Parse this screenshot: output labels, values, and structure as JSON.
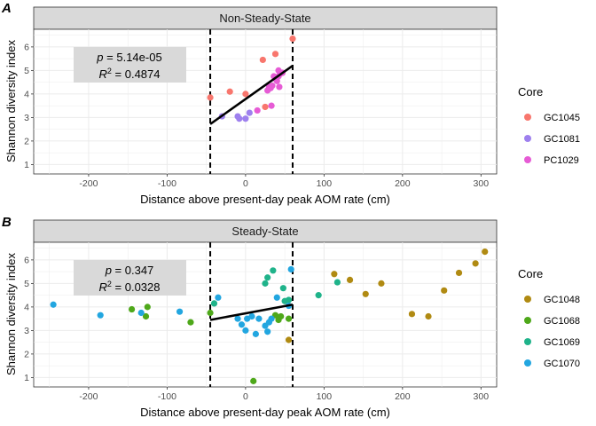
{
  "panels": [
    {
      "tag": "A",
      "strip_label": "Non-Steady-State",
      "stats": {
        "p_value": "5.14e-05",
        "r2_value": "0.4874"
      },
      "legend": {
        "title": "Core",
        "entries": [
          {
            "name": "GC1045",
            "color": "#F8766D"
          },
          {
            "name": "GC1081",
            "color": "#9E80EE"
          },
          {
            "name": "PC1029",
            "color": "#E65BD5"
          }
        ]
      }
    },
    {
      "tag": "B",
      "strip_label": "Steady-State",
      "stats": {
        "p_value": "0.347",
        "r2_value": "0.0328"
      },
      "legend": {
        "title": "Core",
        "entries": [
          {
            "name": "GC1048",
            "color": "#B08A12"
          },
          {
            "name": "GC1068",
            "color": "#4EA81A"
          },
          {
            "name": "GC1069",
            "color": "#1FB38A"
          },
          {
            "name": "GC1070",
            "color": "#22A6E0"
          }
        ]
      }
    }
  ],
  "chart_data": [
    {
      "type": "scatter",
      "title": "Non-Steady-State",
      "xlabel": "Distance above present-day peak AOM rate (cm)",
      "ylabel": "Shannon diversity index",
      "xlim": [
        -270,
        320
      ],
      "ylim": [
        0.6,
        6.75
      ],
      "x_ticks": [
        -200,
        -100,
        0,
        100,
        200,
        300
      ],
      "y_ticks": [
        1,
        2,
        3,
        4,
        5,
        6
      ],
      "grid": true,
      "legend_position": "right",
      "vlines": [
        -45,
        60
      ],
      "fit_line": {
        "x": [
          -45,
          60
        ],
        "y": [
          2.72,
          5.2
        ]
      },
      "annotation": {
        "p": "5.14e-05",
        "R2": "0.4874"
      },
      "series": [
        {
          "name": "GC1045",
          "color": "#F8766D",
          "points": [
            [
              -45,
              3.85
            ],
            [
              -20,
              4.1
            ],
            [
              0,
              4.0
            ],
            [
              22,
              5.45
            ],
            [
              38,
              5.7
            ],
            [
              60,
              6.35
            ],
            [
              25,
              3.45
            ]
          ]
        },
        {
          "name": "GC1081",
          "color": "#9E80EE",
          "points": [
            [
              -30,
              3.05
            ],
            [
              -10,
              3.05
            ],
            [
              -8,
              2.95
            ],
            [
              0,
              2.95
            ],
            [
              5,
              3.2
            ]
          ]
        },
        {
          "name": "PC1029",
          "color": "#E65BD5",
          "points": [
            [
              15,
              3.3
            ],
            [
              33,
              3.5
            ],
            [
              28,
              4.15
            ],
            [
              30,
              4.3
            ],
            [
              32,
              4.25
            ],
            [
              34,
              4.35
            ],
            [
              36,
              4.75
            ],
            [
              38,
              4.65
            ],
            [
              40,
              4.55
            ],
            [
              42,
              4.75
            ],
            [
              43,
              4.3
            ],
            [
              44,
              4.85
            ],
            [
              42,
              5.0
            ],
            [
              47,
              4.9
            ]
          ]
        }
      ]
    },
    {
      "type": "scatter",
      "title": "Steady-State",
      "xlabel": "Distance above present-day peak AOM rate (cm)",
      "ylabel": "Shannon diversity index",
      "xlim": [
        -270,
        320
      ],
      "ylim": [
        0.6,
        6.75
      ],
      "x_ticks": [
        -200,
        -100,
        0,
        100,
        200,
        300
      ],
      "y_ticks": [
        1,
        2,
        3,
        4,
        5,
        6
      ],
      "grid": true,
      "legend_position": "right",
      "vlines": [
        -45,
        60
      ],
      "fit_line": {
        "x": [
          -45,
          60
        ],
        "y": [
          3.45,
          4.1
        ]
      },
      "annotation": {
        "p": "0.347",
        "R2": "0.0328"
      },
      "series": [
        {
          "name": "GC1048",
          "color": "#B08A12",
          "points": [
            [
              113,
              5.4
            ],
            [
              133,
              5.15
            ],
            [
              173,
              5.0
            ],
            [
              153,
              4.55
            ],
            [
              212,
              3.7
            ],
            [
              233,
              3.6
            ],
            [
              253,
              4.7
            ],
            [
              272,
              5.45
            ],
            [
              293,
              5.85
            ],
            [
              305,
              6.35
            ],
            [
              55,
              2.6
            ]
          ]
        },
        {
          "name": "GC1068",
          "color": "#4EA81A",
          "points": [
            [
              -145,
              3.9
            ],
            [
              -127,
              3.6
            ],
            [
              -125,
              4.0
            ],
            [
              -70,
              3.35
            ],
            [
              -45,
              3.75
            ],
            [
              10,
              0.85
            ],
            [
              45,
              3.6
            ],
            [
              38,
              3.65
            ],
            [
              55,
              3.5
            ],
            [
              42,
              3.45
            ]
          ]
        },
        {
          "name": "GC1069",
          "color": "#1FB38A",
          "points": [
            [
              -40,
              4.15
            ],
            [
              25,
              5.0
            ],
            [
              28,
              5.25
            ],
            [
              35,
              5.55
            ],
            [
              48,
              4.8
            ],
            [
              50,
              4.25
            ],
            [
              93,
              4.5
            ],
            [
              117,
              5.05
            ],
            [
              55,
              4.3
            ]
          ]
        },
        {
          "name": "GC1070",
          "color": "#22A6E0",
          "points": [
            [
              -245,
              4.1
            ],
            [
              -185,
              3.65
            ],
            [
              -133,
              3.75
            ],
            [
              -84,
              3.8
            ],
            [
              -35,
              4.4
            ],
            [
              -10,
              3.5
            ],
            [
              -5,
              3.25
            ],
            [
              0,
              3.0
            ],
            [
              2,
              3.5
            ],
            [
              8,
              3.6
            ],
            [
              13,
              2.85
            ],
            [
              17,
              3.5
            ],
            [
              25,
              3.2
            ],
            [
              28,
              2.95
            ],
            [
              30,
              3.35
            ],
            [
              33,
              3.5
            ],
            [
              40,
              4.4
            ],
            [
              58,
              5.6
            ],
            [
              55,
              4.05
            ]
          ]
        }
      ]
    }
  ]
}
